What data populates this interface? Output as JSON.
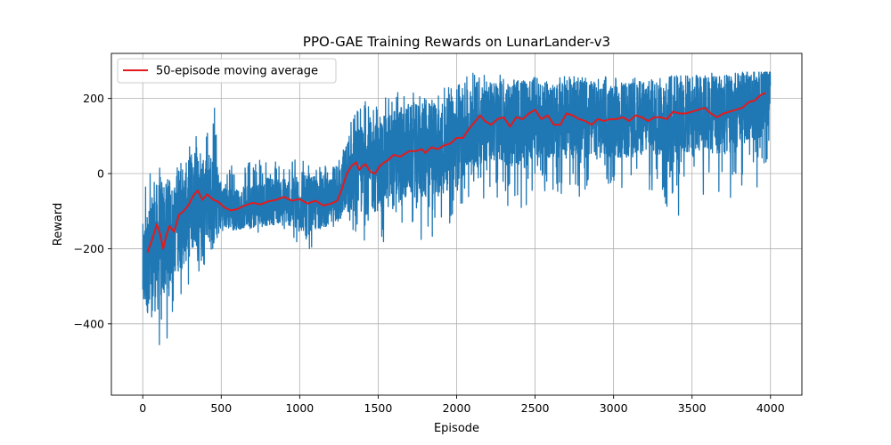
{
  "chart_data": {
    "type": "line",
    "title": "PPO-GAE Training Rewards on LunarLander-v3",
    "xlabel": "Episode",
    "ylabel": "Reward",
    "xlim": [
      -200,
      4200
    ],
    "ylim": [
      -590,
      320
    ],
    "xticks": [
      0,
      500,
      1000,
      1500,
      2000,
      2500,
      3000,
      3500,
      4000
    ],
    "yticks": [
      -400,
      -200,
      0,
      200
    ],
    "grid": true,
    "legend_position": "top-left",
    "raw_series": {
      "color": "#1f77b4",
      "episodes": 4000,
      "envelope": [
        {
          "x": 0,
          "mean": -260,
          "low": -410,
          "high": -20
        },
        {
          "x": 50,
          "mean": -220,
          "low": -400,
          "high": 50
        },
        {
          "x": 100,
          "mean": -190,
          "low": -550,
          "high": 20
        },
        {
          "x": 150,
          "mean": -160,
          "low": -480,
          "high": 0
        },
        {
          "x": 200,
          "mean": -150,
          "low": -360,
          "high": 10
        },
        {
          "x": 250,
          "mean": -120,
          "low": -380,
          "high": 40
        },
        {
          "x": 300,
          "mean": -90,
          "low": -330,
          "high": 80
        },
        {
          "x": 350,
          "mean": -60,
          "low": -300,
          "high": 120
        },
        {
          "x": 400,
          "mean": -55,
          "low": -240,
          "high": 110
        },
        {
          "x": 450,
          "mean": -70,
          "low": -200,
          "high": 210
        },
        {
          "x": 500,
          "mean": -85,
          "low": -160,
          "high": 50
        },
        {
          "x": 600,
          "mean": -95,
          "low": -150,
          "high": 20
        },
        {
          "x": 700,
          "mean": -85,
          "low": -150,
          "high": 40
        },
        {
          "x": 800,
          "mean": -75,
          "low": -170,
          "high": 30
        },
        {
          "x": 900,
          "mean": -70,
          "low": -150,
          "high": 40
        },
        {
          "x": 1000,
          "mean": -80,
          "low": -200,
          "high": 40
        },
        {
          "x": 1100,
          "mean": -80,
          "low": -200,
          "high": 20
        },
        {
          "x": 1200,
          "mean": -80,
          "low": -180,
          "high": 20
        },
        {
          "x": 1250,
          "mean": -60,
          "low": -190,
          "high": 40
        },
        {
          "x": 1300,
          "mean": -10,
          "low": -170,
          "high": 120
        },
        {
          "x": 1400,
          "mean": 10,
          "low": -190,
          "high": 190
        },
        {
          "x": 1500,
          "mean": 20,
          "low": -180,
          "high": 200
        },
        {
          "x": 1600,
          "mean": 40,
          "low": -190,
          "high": 230
        },
        {
          "x": 1700,
          "mean": 60,
          "low": -160,
          "high": 220
        },
        {
          "x": 1800,
          "mean": 60,
          "low": -190,
          "high": 210
        },
        {
          "x": 1900,
          "mean": 70,
          "low": -170,
          "high": 230
        },
        {
          "x": 2000,
          "mean": 90,
          "low": -110,
          "high": 250
        },
        {
          "x": 2100,
          "mean": 120,
          "low": -80,
          "high": 270
        },
        {
          "x": 2200,
          "mean": 140,
          "low": -60,
          "high": 270
        },
        {
          "x": 2300,
          "mean": 130,
          "low": -80,
          "high": 260
        },
        {
          "x": 2400,
          "mean": 140,
          "low": -100,
          "high": 260
        },
        {
          "x": 2500,
          "mean": 150,
          "low": -70,
          "high": 260
        },
        {
          "x": 2600,
          "mean": 140,
          "low": -60,
          "high": 260
        },
        {
          "x": 2700,
          "mean": 140,
          "low": -50,
          "high": 260
        },
        {
          "x": 2800,
          "mean": 150,
          "low": -80,
          "high": 260
        },
        {
          "x": 2900,
          "mean": 140,
          "low": -60,
          "high": 260
        },
        {
          "x": 3000,
          "mean": 140,
          "low": -40,
          "high": 260
        },
        {
          "x": 3100,
          "mean": 140,
          "low": -60,
          "high": 260
        },
        {
          "x": 3200,
          "mean": 150,
          "low": -50,
          "high": 260
        },
        {
          "x": 3300,
          "mean": 150,
          "low": -70,
          "high": 260
        },
        {
          "x": 3400,
          "mean": 150,
          "low": -160,
          "high": 260
        },
        {
          "x": 3500,
          "mean": 160,
          "low": -50,
          "high": 260
        },
        {
          "x": 3600,
          "mean": 160,
          "low": -60,
          "high": 270
        },
        {
          "x": 3700,
          "mean": 160,
          "low": -90,
          "high": 260
        },
        {
          "x": 3800,
          "mean": 170,
          "low": -40,
          "high": 270
        },
        {
          "x": 3900,
          "mean": 190,
          "low": -40,
          "high": 270
        },
        {
          "x": 4000,
          "mean": 200,
          "low": -20,
          "high": 270
        }
      ]
    },
    "series": [
      {
        "name": "50-episode moving average",
        "color": "#e31a1c",
        "x": [
          30,
          60,
          90,
          110,
          130,
          150,
          170,
          200,
          230,
          260,
          290,
          320,
          350,
          380,
          410,
          450,
          480,
          520,
          560,
          600,
          650,
          700,
          750,
          800,
          850,
          900,
          950,
          1000,
          1050,
          1100,
          1150,
          1200,
          1240,
          1270,
          1300,
          1330,
          1360,
          1380,
          1400,
          1420,
          1450,
          1480,
          1510,
          1540,
          1560,
          1600,
          1640,
          1680,
          1700,
          1740,
          1780,
          1800,
          1840,
          1880,
          1920,
          1960,
          2000,
          2040,
          2080,
          2120,
          2150,
          2180,
          2220,
          2260,
          2300,
          2340,
          2380,
          2420,
          2460,
          2500,
          2540,
          2580,
          2620,
          2660,
          2700,
          2740,
          2780,
          2820,
          2860,
          2900,
          2940,
          2980,
          3020,
          3060,
          3100,
          3140,
          3180,
          3220,
          3260,
          3300,
          3340,
          3380,
          3420,
          3460,
          3500,
          3540,
          3580,
          3620,
          3660,
          3700,
          3740,
          3780,
          3820,
          3860,
          3900,
          3940,
          3970
        ],
        "y": [
          -210,
          -175,
          -135,
          -160,
          -200,
          -165,
          -140,
          -155,
          -110,
          -100,
          -85,
          -60,
          -45,
          -70,
          -55,
          -70,
          -75,
          -90,
          -98,
          -95,
          -85,
          -78,
          -82,
          -74,
          -70,
          -62,
          -72,
          -68,
          -80,
          -72,
          -85,
          -80,
          -72,
          -40,
          0,
          20,
          30,
          10,
          20,
          25,
          5,
          0,
          20,
          30,
          35,
          50,
          45,
          55,
          60,
          60,
          65,
          55,
          70,
          65,
          75,
          80,
          95,
          95,
          120,
          140,
          155,
          140,
          130,
          145,
          150,
          125,
          150,
          145,
          160,
          170,
          145,
          155,
          130,
          130,
          160,
          155,
          145,
          140,
          130,
          145,
          140,
          145,
          145,
          150,
          140,
          155,
          150,
          140,
          150,
          150,
          145,
          165,
          160,
          160,
          165,
          170,
          175,
          160,
          150,
          160,
          165,
          170,
          175,
          190,
          195,
          210,
          215
        ]
      }
    ]
  }
}
